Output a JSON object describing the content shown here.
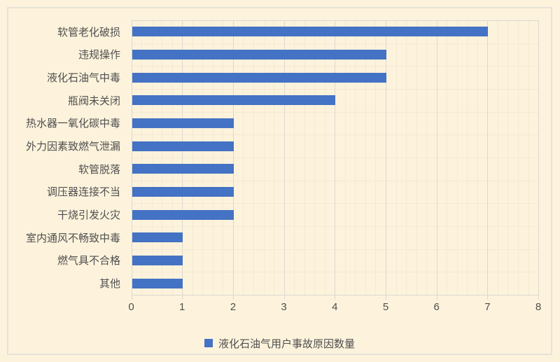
{
  "chart_data": {
    "type": "bar",
    "orientation": "horizontal",
    "title": "",
    "xlabel": "",
    "ylabel": "",
    "categories": [
      "软管老化破损",
      "违规操作",
      "液化石油气中毒",
      "瓶阀未关闭",
      "热水器一氧化碳中毒",
      "外力因素致燃气泄漏",
      "软管脱落",
      "调压器连接不当",
      "干烧引发火灾",
      "室内通风不畅致中毒",
      "燃气具不合格",
      "其他"
    ],
    "values": [
      7,
      5,
      5,
      4,
      2,
      2,
      2,
      2,
      2,
      1,
      1,
      1
    ],
    "legend": "液化石油气用户事故原因数量",
    "legend_position": "bottom-center",
    "xlim": [
      0,
      8
    ],
    "x_tick_step": 1,
    "x_minor_step": 0.2,
    "grid": "vertical-major-with-faint-minor",
    "colors": {
      "background": "#fdf3dc",
      "bar": "#4472c4",
      "gridline": "#dbd8cf",
      "minor_gridline": "#f4ead3",
      "text": "#4f4f4f",
      "frame_border": "#e5e2da"
    }
  }
}
